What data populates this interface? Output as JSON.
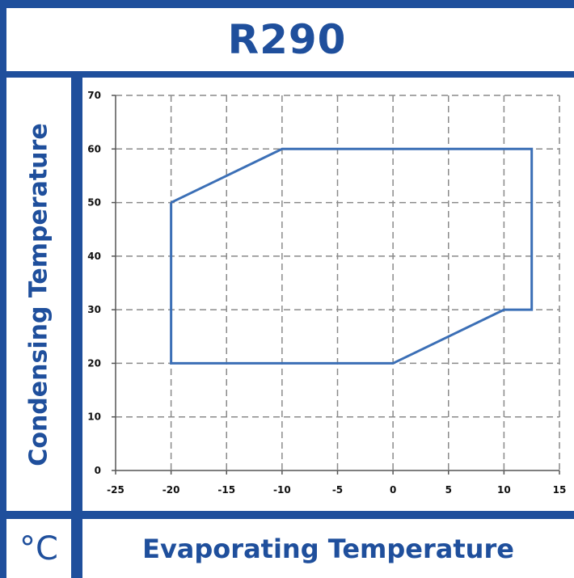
{
  "colors": {
    "frame": "#1f4f9c",
    "outline": "#3b6fb6",
    "grid": "#8a8a8a",
    "axis": "#555555",
    "text": "#1f4f9c"
  },
  "chart_data": {
    "type": "line",
    "title": "R290",
    "xlabel": "Evaporating Temperature",
    "ylabel": "Condensing Temperature",
    "unit": "°C",
    "xlim": [
      -25,
      15
    ],
    "ylim": [
      0,
      70
    ],
    "x_ticks": [
      "-25",
      "-20",
      "-15",
      "-10",
      "-5",
      "0",
      "5",
      "10",
      "15"
    ],
    "y_ticks": [
      "0",
      "10",
      "20",
      "30",
      "40",
      "50",
      "60",
      "70"
    ],
    "grid": true,
    "series": [
      {
        "x": [
          -20,
          -10,
          12.5,
          12.5,
          10,
          0,
          -20,
          -20
        ],
        "y": [
          50,
          60,
          60,
          30,
          30,
          20,
          20,
          50
        ]
      }
    ]
  }
}
